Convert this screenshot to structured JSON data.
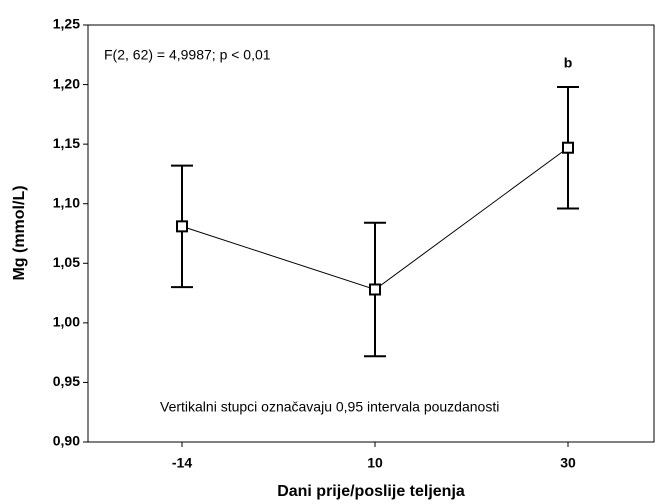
{
  "chart_data": {
    "type": "line",
    "xlabel": "Dani prije/poslije teljenja",
    "ylabel": "Mg (mmol/L)",
    "categories": [
      "-14",
      "10",
      "30"
    ],
    "values": [
      1.081,
      1.028,
      1.147
    ],
    "errors": [
      0.051,
      0.056,
      0.051
    ],
    "color": "#000000",
    "ylim": [
      0.9,
      1.25
    ],
    "yticks": [
      {
        "value": 0.9,
        "label": "0,90"
      },
      {
        "value": 0.95,
        "label": "0,95"
      },
      {
        "value": 1.0,
        "label": "1,00"
      },
      {
        "value": 1.05,
        "label": "1,05"
      },
      {
        "value": 1.1,
        "label": "1,10"
      },
      {
        "value": 1.15,
        "label": "1,15"
      },
      {
        "value": 1.2,
        "label": "1,20"
      },
      {
        "value": 1.25,
        "label": "1,25"
      }
    ],
    "annotations": [
      "F(2, 62) = 4,9987; p < 0,01",
      "b",
      "Vertikalni stupci označavaju 0,95 intervala pouzdanosti"
    ]
  }
}
